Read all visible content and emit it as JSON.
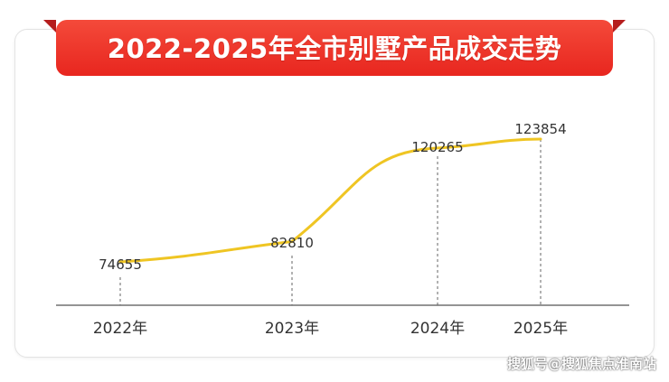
{
  "banner": {
    "title": "2022-2025年全市别墅产品成交走势"
  },
  "watermark": "搜狐号@搜狐焦点淮南站",
  "colors": {
    "banner_red": "#f03a2e",
    "banner_dark": "#b51d1d",
    "line": "#efc523",
    "axis": "#555555"
  },
  "chart_data": {
    "type": "line",
    "title": "2022-2025年全市别墅产品成交走势",
    "categories": [
      "2022年",
      "2023年",
      "2024年",
      "2025年"
    ],
    "values": [
      74655,
      82810,
      120265,
      123854
    ],
    "data_labels": [
      "74655",
      "82810",
      "120265",
      "123854"
    ],
    "xlabel": "",
    "ylabel": "",
    "ylim": [
      60000,
      130000
    ],
    "grid": false,
    "legend": "none",
    "smooth": true
  }
}
